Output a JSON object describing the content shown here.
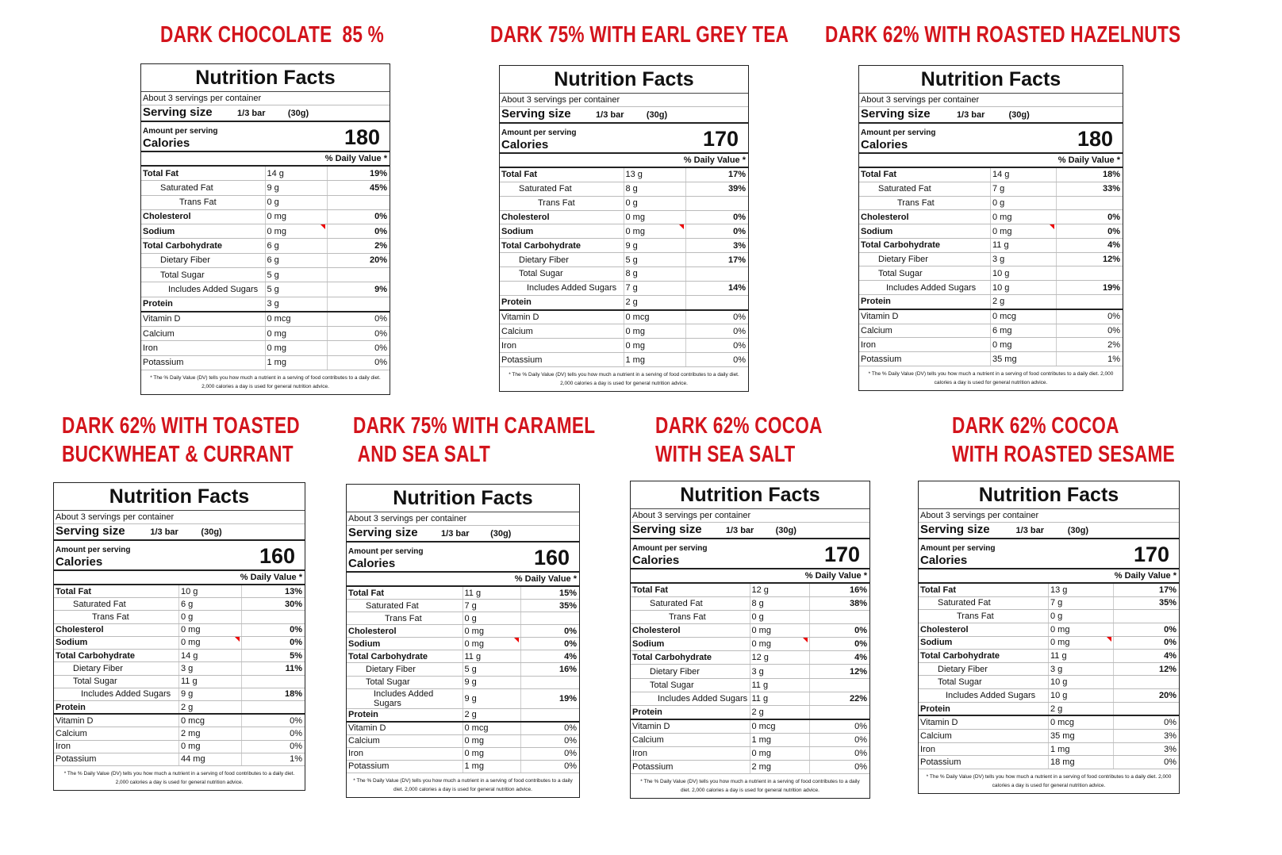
{
  "labels": [
    {
      "title": [
        "DARK CHOCOLATE  85 %"
      ],
      "heading": "Nutrition Facts",
      "servings": "About 3 servings per container",
      "serving_label": "Serving size",
      "serving_amount": "1/3 bar",
      "serving_weight": "(30g)",
      "amount_label": "Amount per serving",
      "calories_label": "Calories",
      "calories": 180,
      "dv_header": "% Daily Value *",
      "rows": [
        [
          "Total Fat",
          "14 g",
          "19%"
        ],
        [
          "Saturated Fat",
          "9 g",
          "45%"
        ],
        [
          "Trans Fat",
          "0 g"
        ],
        [
          "Cholesterol",
          "0 mg",
          "0%"
        ],
        [
          "Sodium",
          "0 mg",
          "0%"
        ],
        [
          "Total Carbohydrate",
          "6 g",
          "2%"
        ],
        [
          "Dietary Fiber",
          "6 g",
          "20%"
        ],
        [
          "Total Sugar",
          "5 g"
        ],
        [
          "Includes Added Sugars",
          "5 g",
          "9%"
        ],
        [
          "Protein",
          "3 g"
        ],
        [
          "Vitamin D",
          "0 mcg",
          "0%"
        ],
        [
          "Calcium",
          "0 mg",
          "0%"
        ],
        [
          "Iron",
          "0 mg",
          "0%"
        ],
        [
          "Potassium",
          "1 mg",
          "0%"
        ]
      ],
      "footnote": "* The % Daily Value (DV) tells you how much a nutrient in a serving of food contributes to a daily diet. 2,000 calories a day is used for general nutrition advice."
    },
    {
      "title": [
        "DARK 75% WITH EARL GREY TEA"
      ],
      "heading": "Nutrition Facts",
      "servings": "About 3 servings per container",
      "serving_label": "Serving size",
      "serving_amount": "1/3 bar",
      "serving_weight": "(30g)",
      "amount_label": "Amount per serving",
      "calories_label": "Calories",
      "calories": 170,
      "dv_header": "% Daily Value *",
      "rows": [
        [
          "Total Fat",
          "13 g",
          "17%"
        ],
        [
          "Saturated Fat",
          "8 g",
          "39%"
        ],
        [
          "Trans Fat",
          "0 g"
        ],
        [
          "Cholesterol",
          "0 mg",
          "0%"
        ],
        [
          "Sodium",
          "0 mg",
          "0%"
        ],
        [
          "Total Carbohydrate",
          "9 g",
          "3%"
        ],
        [
          "Dietary Fiber",
          "5 g",
          "17%"
        ],
        [
          "Total Sugar",
          "8 g"
        ],
        [
          "Includes Added Sugars",
          "7 g",
          "14%"
        ],
        [
          "Protein",
          "2 g"
        ],
        [
          "Vitamin D",
          "0 mcg",
          "0%"
        ],
        [
          "Calcium",
          "0 mg",
          "0%"
        ],
        [
          "Iron",
          "0 mg",
          "0%"
        ],
        [
          "Potassium",
          "1 mg",
          "0%"
        ]
      ],
      "footnote": "* The % Daily Value (DV) tells you how much a nutrient in a serving of food contributes to a daily diet. 2,000 calories a day is used for general nutrition advice."
    },
    {
      "title": [
        "DARK 62% WITH ROASTED HAZELNUTS"
      ],
      "heading": "Nutrition Facts",
      "servings": "About 3 servings per container",
      "serving_label": "Serving size",
      "serving_amount": "1/3 bar",
      "serving_weight": "(30g)",
      "amount_label": "Amount per serving",
      "calories_label": "Calories",
      "calories": 180,
      "dv_header": "% Daily Value *",
      "rows": [
        [
          "Total Fat",
          "14 g",
          "18%"
        ],
        [
          "Saturated Fat",
          "7 g",
          "33%"
        ],
        [
          "Trans Fat",
          "0 g"
        ],
        [
          "Cholesterol",
          "0 mg",
          "0%"
        ],
        [
          "Sodium",
          "0 mg",
          "0%"
        ],
        [
          "Total Carbohydrate",
          "11 g",
          "4%"
        ],
        [
          "Dietary Fiber",
          "3 g",
          "12%"
        ],
        [
          "Total Sugar",
          "10 g"
        ],
        [
          "Includes Added Sugars",
          "10 g",
          "19%"
        ],
        [
          "Protein",
          "2 g"
        ],
        [
          "Vitamin D",
          "0 mcg",
          "0%"
        ],
        [
          "Calcium",
          "6 mg",
          "0%"
        ],
        [
          "Iron",
          "0 mg",
          "2%"
        ],
        [
          "Potassium",
          "35 mg",
          "1%"
        ]
      ],
      "footnote": "* The % Daily Value (DV) tells you how much a nutrient in a serving of food contributes to a daily diet. 2,000 calories a day is used for general nutrition advice."
    },
    {
      "title": [
        "DARK 62% WITH TOASTED",
        "BUCKWHEAT & CURRANT"
      ],
      "heading": "Nutrition Facts",
      "servings": "About 3 servings per container",
      "serving_label": "Serving size",
      "serving_amount": "1/3 bar",
      "serving_weight": "(30g)",
      "amount_label": "Amount per serving",
      "calories_label": "Calories",
      "calories": 160,
      "dv_header": "% Daily Value *",
      "rows": [
        [
          "Total Fat",
          "10 g",
          "13%"
        ],
        [
          "Saturated Fat",
          "6 g",
          "30%"
        ],
        [
          "Trans Fat",
          "0 g"
        ],
        [
          "Cholesterol",
          "0 mg",
          "0%"
        ],
        [
          "Sodium",
          "0 mg",
          "0%"
        ],
        [
          "Total Carbohydrate",
          "14 g",
          "5%"
        ],
        [
          "Dietary Fiber",
          "3 g",
          "11%"
        ],
        [
          "Total Sugar",
          "11 g"
        ],
        [
          "Includes Added Sugars",
          "9 g",
          "18%"
        ],
        [
          "Protein",
          "2 g"
        ],
        [
          "Vitamin D",
          "0 mcg",
          "0%"
        ],
        [
          "Calcium",
          "2 mg",
          "0%"
        ],
        [
          "Iron",
          "0 mg",
          "0%"
        ],
        [
          "Potassium",
          "44 mg",
          "1%"
        ]
      ],
      "footnote": "* The % Daily Value (DV) tells you how much a nutrient in a serving of food contributes to a daily diet. 2,000 calories a day is used for general nutrition advice."
    },
    {
      "title": [
        "DARK 75% WITH CARAMEL",
        " AND SEA SALT"
      ],
      "heading": "Nutrition Facts",
      "servings": "About 3 servings per container",
      "serving_label": "Serving size",
      "serving_amount": "1/3 bar",
      "serving_weight": "(30g)",
      "amount_label": "Amount per serving",
      "calories_label": "Calories",
      "calories": 160,
      "dv_header": "% Daily Value *",
      "rows": [
        [
          "Total Fat",
          "11 g",
          "15%"
        ],
        [
          "Saturated Fat",
          "7 g",
          "35%"
        ],
        [
          "Trans Fat",
          "0 g"
        ],
        [
          "Cholesterol",
          "0 mg",
          "0%"
        ],
        [
          "Sodium",
          "0 mg",
          "0%"
        ],
        [
          "Total Carbohydrate",
          "11 g",
          "4%"
        ],
        [
          "Dietary Fiber",
          "5 g",
          "16%"
        ],
        [
          "Total Sugar",
          "9 g"
        ],
        [
          "Includes Added Sugars",
          "9 g",
          "19%"
        ],
        [
          "Protein",
          "2 g"
        ],
        [
          "Vitamin D",
          "0 mcg",
          "0%"
        ],
        [
          "Calcium",
          "0 mg",
          "0%"
        ],
        [
          "Iron",
          "0 mg",
          "0%"
        ],
        [
          "Potassium",
          "1 mg",
          "0%"
        ]
      ],
      "footnote": "* The % Daily Value (DV) tells you how much a nutrient in a serving of food contributes to a daily diet. 2,000 calories a day is used for general nutrition advice."
    },
    {
      "title": [
        "DARK 62% COCOA",
        "WITH SEA SALT"
      ],
      "heading": "Nutrition Facts",
      "servings": "About 3 servings per container",
      "serving_label": "Serving size",
      "serving_amount": "1/3 bar",
      "serving_weight": "(30g)",
      "amount_label": "Amount per serving",
      "calories_label": "Calories",
      "calories": 170,
      "dv_header": "% Daily Value *",
      "rows": [
        [
          "Total Fat",
          "12 g",
          "16%"
        ],
        [
          "Saturated Fat",
          "8 g",
          "38%"
        ],
        [
          "Trans Fat",
          "0 g"
        ],
        [
          "Cholesterol",
          "0 mg",
          "0%"
        ],
        [
          "Sodium",
          "0 mg",
          "0%"
        ],
        [
          "Total Carbohydrate",
          "12 g",
          "4%"
        ],
        [
          "Dietary Fiber",
          "3 g",
          "12%"
        ],
        [
          "Total Sugar",
          "11 g"
        ],
        [
          "Includes Added Sugars",
          "11 g",
          "22%"
        ],
        [
          "Protein",
          "2 g"
        ],
        [
          "Vitamin D",
          "0 mcg",
          "0%"
        ],
        [
          "Calcium",
          "1 mg",
          "0%"
        ],
        [
          "Iron",
          "0 mg",
          "0%"
        ],
        [
          "Potassium",
          "2 mg",
          "0%"
        ]
      ],
      "footnote": "* The % Daily Value (DV) tells you how much a nutrient in a serving of food contributes to a daily diet. 2,000 calories a day is used for general nutrition advice."
    },
    {
      "title": [
        "DARK 62% COCOA",
        "WITH ROASTED SESAME"
      ],
      "heading": "Nutrition Facts",
      "servings": "About 3 servings per container",
      "serving_label": "Serving size",
      "serving_amount": "1/3 bar",
      "serving_weight": "(30g)",
      "amount_label": "Amount per serving",
      "calories_label": "Calories",
      "calories": 170,
      "dv_header": "% Daily Value *",
      "rows": [
        [
          "Total Fat",
          "13 g",
          "17%"
        ],
        [
          "Saturated Fat",
          "7 g",
          "35%"
        ],
        [
          "Trans Fat",
          "0 g"
        ],
        [
          "Cholesterol",
          "0 mg",
          "0%"
        ],
        [
          "Sodium",
          "0 mg",
          "0%"
        ],
        [
          "Total Carbohydrate",
          "11 g",
          "4%"
        ],
        [
          "Dietary Fiber",
          "3 g",
          "12%"
        ],
        [
          "Total Sugar",
          "10 g"
        ],
        [
          "Includes Added Sugars",
          "10 g",
          "20%"
        ],
        [
          "Protein",
          "2 g"
        ],
        [
          "Vitamin D",
          "0 mcg",
          "0%"
        ],
        [
          "Calcium",
          "35 mg",
          "3%"
        ],
        [
          "Iron",
          "1 mg",
          "3%"
        ],
        [
          "Potassium",
          "18 mg",
          "0%"
        ]
      ],
      "footnote": "* The % Daily Value (DV) tells you how much a nutrient in a serving of food contributes to a daily diet. 2,000 calories a day is used for general nutrition advice."
    }
  ]
}
